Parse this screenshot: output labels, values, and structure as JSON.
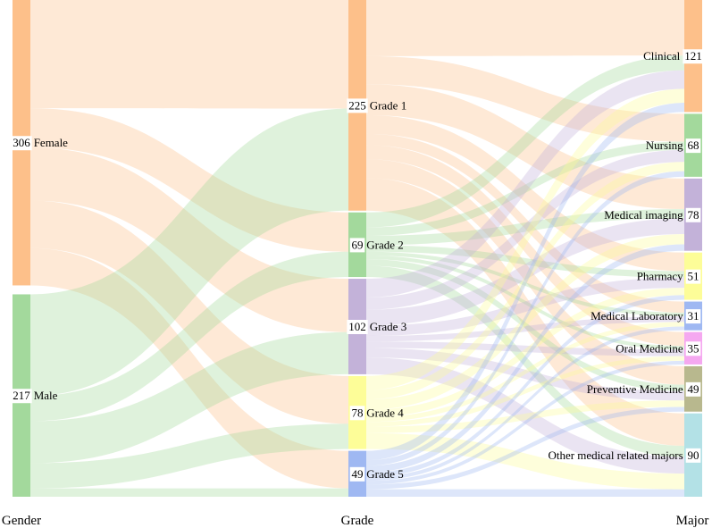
{
  "chart_data": {
    "type": "sankey",
    "title": "",
    "columns": [
      "Gender",
      "Grade",
      "Major"
    ],
    "nodes": [
      {
        "id": "Female",
        "column": 0,
        "value": 306,
        "color": "#fdc08a"
      },
      {
        "id": "Male",
        "column": 0,
        "value": 217,
        "color": "#a3d99c"
      },
      {
        "id": "Grade 1",
        "column": 1,
        "value": 225,
        "color": "#fdc08a"
      },
      {
        "id": "Grade 2",
        "column": 1,
        "value": 69,
        "color": "#a3d99c"
      },
      {
        "id": "Grade 3",
        "column": 1,
        "value": 102,
        "color": "#c3b2d9"
      },
      {
        "id": "Grade 4",
        "column": 1,
        "value": 78,
        "color": "#fdfd98"
      },
      {
        "id": "Grade 5",
        "column": 1,
        "value": 49,
        "color": "#9fb8f2"
      },
      {
        "id": "Clinical",
        "column": 2,
        "value": 121,
        "color": "#fdc08a"
      },
      {
        "id": "Nursing",
        "column": 2,
        "value": 68,
        "color": "#a3d99c"
      },
      {
        "id": "Medical imaging",
        "column": 2,
        "value": 78,
        "color": "#c3b2d9"
      },
      {
        "id": "Pharmacy",
        "column": 2,
        "value": 51,
        "color": "#fdfd98"
      },
      {
        "id": "Medical Laboratory",
        "column": 2,
        "value": 31,
        "color": "#9fb8f2"
      },
      {
        "id": "Oral Medicine",
        "column": 2,
        "value": 35,
        "color": "#f5a8f0"
      },
      {
        "id": "Preventive Medicine",
        "column": 2,
        "value": 49,
        "color": "#b8b88e"
      },
      {
        "id": "Other medical related majors",
        "column": 2,
        "value": 90,
        "color": "#b3e1e6"
      }
    ],
    "links": [
      {
        "source": "Female",
        "target": "Grade 1",
        "value": 116
      },
      {
        "source": "Female",
        "target": "Grade 2",
        "value": 42
      },
      {
        "source": "Female",
        "target": "Grade 3",
        "value": 57
      },
      {
        "source": "Female",
        "target": "Grade 4",
        "value": 51
      },
      {
        "source": "Female",
        "target": "Grade 5",
        "value": 40
      },
      {
        "source": "Male",
        "target": "Grade 1",
        "value": 109
      },
      {
        "source": "Male",
        "target": "Grade 2",
        "value": 27
      },
      {
        "source": "Male",
        "target": "Grade 3",
        "value": 45
      },
      {
        "source": "Male",
        "target": "Grade 4",
        "value": 27
      },
      {
        "source": "Male",
        "target": "Grade 5",
        "value": 9
      },
      {
        "source": "Grade 1",
        "target": "Clinical",
        "value": 60
      },
      {
        "source": "Grade 1",
        "target": "Nursing",
        "value": 30
      },
      {
        "source": "Grade 1",
        "target": "Medical imaging",
        "value": 33
      },
      {
        "source": "Grade 1",
        "target": "Pharmacy",
        "value": 20
      },
      {
        "source": "Grade 1",
        "target": "Medical Laboratory",
        "value": 12
      },
      {
        "source": "Grade 1",
        "target": "Oral Medicine",
        "value": 15
      },
      {
        "source": "Grade 1",
        "target": "Preventive Medicine",
        "value": 20
      },
      {
        "source": "Grade 1",
        "target": "Other medical related majors",
        "value": 35
      },
      {
        "source": "Grade 2",
        "target": "Clinical",
        "value": 16
      },
      {
        "source": "Grade 2",
        "target": "Nursing",
        "value": 9
      },
      {
        "source": "Grade 2",
        "target": "Medical imaging",
        "value": 10
      },
      {
        "source": "Grade 2",
        "target": "Pharmacy",
        "value": 7
      },
      {
        "source": "Grade 2",
        "target": "Medical Laboratory",
        "value": 4
      },
      {
        "source": "Grade 2",
        "target": "Oral Medicine",
        "value": 4
      },
      {
        "source": "Grade 2",
        "target": "Preventive Medicine",
        "value": 7
      },
      {
        "source": "Grade 2",
        "target": "Other medical related majors",
        "value": 12
      },
      {
        "source": "Grade 3",
        "target": "Clinical",
        "value": 20
      },
      {
        "source": "Grade 3",
        "target": "Nursing",
        "value": 13
      },
      {
        "source": "Grade 3",
        "target": "Medical imaging",
        "value": 17
      },
      {
        "source": "Grade 3",
        "target": "Pharmacy",
        "value": 11
      },
      {
        "source": "Grade 3",
        "target": "Medical Laboratory",
        "value": 6
      },
      {
        "source": "Grade 3",
        "target": "Oral Medicine",
        "value": 7
      },
      {
        "source": "Grade 3",
        "target": "Preventive Medicine",
        "value": 10
      },
      {
        "source": "Grade 3",
        "target": "Other medical related majors",
        "value": 18
      },
      {
        "source": "Grade 4",
        "target": "Clinical",
        "value": 15
      },
      {
        "source": "Grade 4",
        "target": "Nursing",
        "value": 10
      },
      {
        "source": "Grade 4",
        "target": "Medical imaging",
        "value": 11
      },
      {
        "source": "Grade 4",
        "target": "Pharmacy",
        "value": 8
      },
      {
        "source": "Grade 4",
        "target": "Medical Laboratory",
        "value": 5
      },
      {
        "source": "Grade 4",
        "target": "Oral Medicine",
        "value": 5
      },
      {
        "source": "Grade 4",
        "target": "Preventive Medicine",
        "value": 7
      },
      {
        "source": "Grade 4",
        "target": "Other medical related majors",
        "value": 17
      },
      {
        "source": "Grade 5",
        "target": "Clinical",
        "value": 10
      },
      {
        "source": "Grade 5",
        "target": "Nursing",
        "value": 6
      },
      {
        "source": "Grade 5",
        "target": "Medical imaging",
        "value": 7
      },
      {
        "source": "Grade 5",
        "target": "Pharmacy",
        "value": 5
      },
      {
        "source": "Grade 5",
        "target": "Medical Laboratory",
        "value": 4
      },
      {
        "source": "Grade 5",
        "target": "Oral Medicine",
        "value": 4
      },
      {
        "source": "Grade 5",
        "target": "Preventive Medicine",
        "value": 5
      },
      {
        "source": "Grade 5",
        "target": "Other medical related majors",
        "value": 8
      }
    ]
  }
}
